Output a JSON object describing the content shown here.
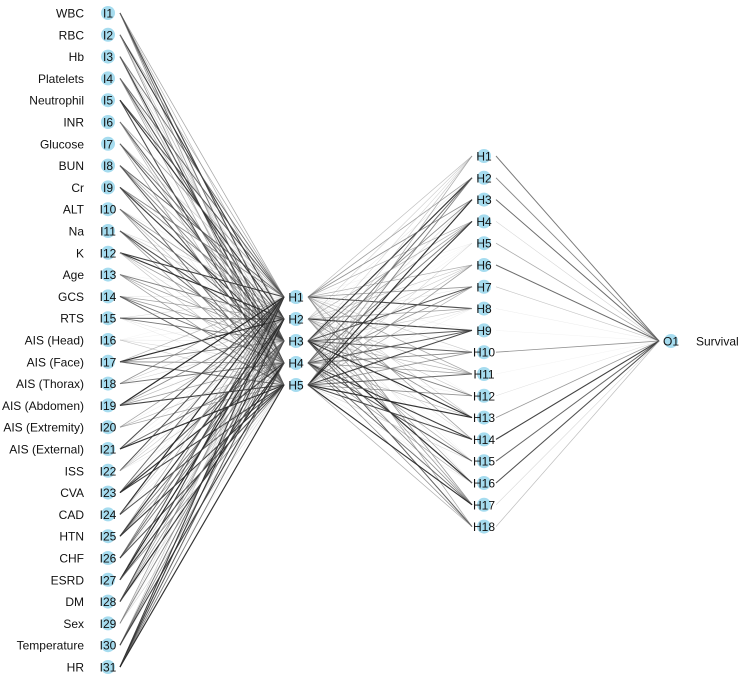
{
  "input_layer": {
    "nodes": [
      "I1",
      "I2",
      "I3",
      "I4",
      "I5",
      "I6",
      "I7",
      "I8",
      "I9",
      "I10",
      "I11",
      "I12",
      "I13",
      "I14",
      "I15",
      "I16",
      "I17",
      "I18",
      "I19",
      "I20",
      "I21",
      "I22",
      "I23",
      "I24",
      "I25",
      "I26",
      "I27",
      "I28",
      "I29",
      "I30",
      "I31"
    ],
    "variables": [
      "WBC",
      "RBC",
      "Hb",
      "Platelets",
      "Neutrophil",
      "INR",
      "Glucose",
      "BUN",
      "Cr",
      "ALT",
      "Na",
      "K",
      "Age",
      "GCS",
      "RTS",
      "AIS (Head)",
      "AIS (Face)",
      "AIS (Thorax)",
      "AIS (Abdomen)",
      "AIS (Extremity)",
      "AIS (External)",
      "ISS",
      "CVA",
      "CAD",
      "HTN",
      "CHF",
      "ESRD",
      "DM",
      "Sex",
      "Temperature",
      "HR"
    ]
  },
  "hidden_layer_1": {
    "nodes": [
      "H1",
      "H2",
      "H3",
      "H4",
      "H5"
    ]
  },
  "hidden_layer_2": {
    "nodes": [
      "H1",
      "H2",
      "H3",
      "H4",
      "H5",
      "H6",
      "H7",
      "H8",
      "H9",
      "H10",
      "H11",
      "H12",
      "H13",
      "H14",
      "H15",
      "H16",
      "H17",
      "H18"
    ]
  },
  "output_layer": {
    "nodes": [
      "O1"
    ],
    "variables": [
      "Survival"
    ]
  },
  "colors": {
    "node_fill": "#a6dcef",
    "edge_dark": "#222222",
    "edge_light": "#c8c8c8"
  }
}
